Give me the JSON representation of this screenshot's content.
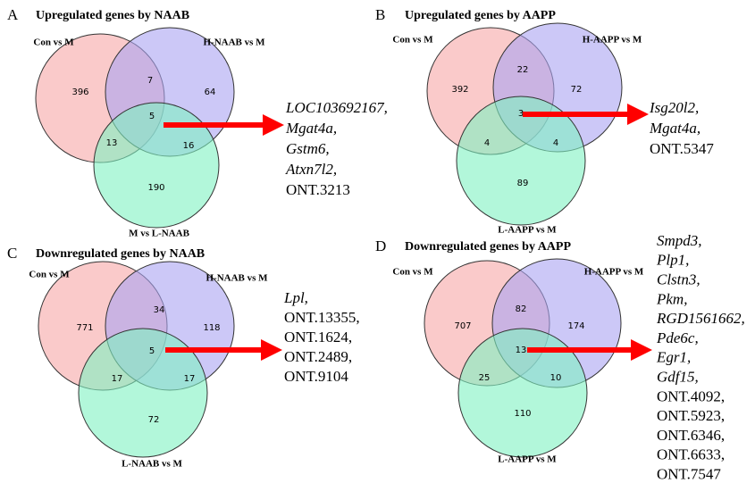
{
  "panels": [
    {
      "letter": "A",
      "title": "Upregulated genes by NAAB",
      "sets": [
        "Con vs M",
        "H-NAAB vs M",
        "M vs L-NAAB"
      ],
      "counts": [
        396,
        7,
        64,
        5,
        13,
        16,
        190
      ],
      "genes": [
        {
          "text": "LOC103692167,",
          "italic": true
        },
        {
          "text": "Mgat4a,",
          "italic": true
        },
        {
          "text": "Gstm6,",
          "italic": true
        },
        {
          "text": "Atxn7l2,",
          "italic": true
        },
        {
          "text": "ONT.3213",
          "italic": false
        }
      ]
    },
    {
      "letter": "B",
      "title": "Upregulated genes by AAPP",
      "sets": [
        "Con vs M",
        "H-AAPP vs M",
        "L-AAPP vs M"
      ],
      "counts": [
        392,
        22,
        72,
        3,
        4,
        4,
        89
      ],
      "genes": [
        {
          "text": "Isg20l2,",
          "italic": true
        },
        {
          "text": "Mgat4a,",
          "italic": true
        },
        {
          "text": "ONT.5347",
          "italic": false
        }
      ]
    },
    {
      "letter": "C",
      "title": "Downregulated  genes by NAAB",
      "sets": [
        "Con vs M",
        "H-NAAB  vs M",
        "L-NAAB vs M"
      ],
      "counts": [
        771,
        34,
        118,
        5,
        17,
        17,
        72
      ],
      "genes": [
        {
          "text": "Lpl,",
          "italic": true
        },
        {
          "text": "ONT.13355,",
          "italic": false
        },
        {
          "text": "ONT.1624,",
          "italic": false
        },
        {
          "text": "ONT.2489,",
          "italic": false
        },
        {
          "text": "ONT.9104",
          "italic": false
        }
      ]
    },
    {
      "letter": "D",
      "title": "Downregulated  genes by AAPP",
      "sets": [
        "Con vs M",
        "H-AAPP vs M",
        "L-AAPP vs M"
      ],
      "counts": [
        707,
        82,
        174,
        13,
        25,
        10,
        110
      ],
      "genes": [
        {
          "text": "Smpd3,",
          "italic": true
        },
        {
          "text": "Plp1,",
          "italic": true
        },
        {
          "text": "Clstn3,",
          "italic": true
        },
        {
          "text": "Pkm,",
          "italic": true
        },
        {
          "text": "RGD1561662,",
          "italic": true
        },
        {
          "text": "Pde6c,",
          "italic": true
        },
        {
          "text": "Egr1,",
          "italic": true
        },
        {
          "text": "Gdf15,",
          "italic": true
        },
        {
          "text": "ONT.4092,",
          "italic": false
        },
        {
          "text": "ONT.5923,",
          "italic": false
        },
        {
          "text": "ONT.6346,",
          "italic": false
        },
        {
          "text": "ONT.6633,",
          "italic": false
        },
        {
          "text": "ONT.7547",
          "italic": false
        }
      ]
    }
  ]
}
